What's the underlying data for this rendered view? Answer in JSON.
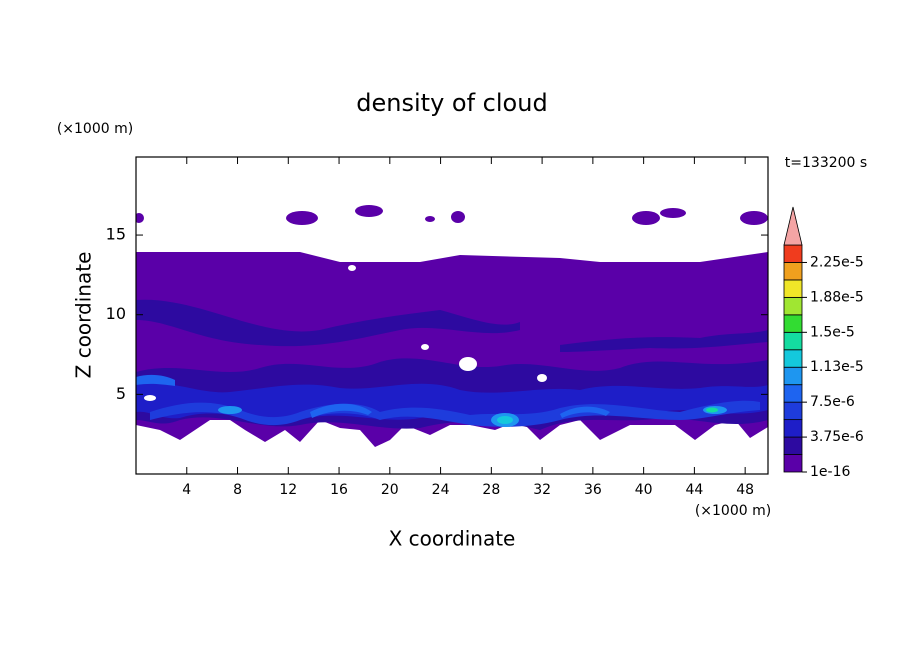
{
  "chart_data": {
    "type": "contour",
    "title": "density of cloud",
    "x_label": "X coordinate",
    "y_label": "Z coordinate",
    "x_unit": "(×1000 m)",
    "y_unit": "(×1000 m)",
    "annotation": "t=133200 s",
    "xlim": [
      0,
      49.8
    ],
    "ylim": [
      0,
      19.9
    ],
    "xticks": [
      4,
      8,
      12,
      16,
      20,
      24,
      28,
      32,
      36,
      40,
      44,
      48
    ],
    "yticks": [
      5,
      10,
      15
    ],
    "colorbar": {
      "levels": [
        1e-16,
        1.875e-06,
        3.75e-06,
        5.625e-06,
        7.5e-06,
        9.375e-06,
        1.125e-05,
        1.3125e-05,
        1.5e-05,
        1.6875e-05,
        1.875e-05,
        2.0625e-05,
        2.25e-05
      ],
      "colors": [
        "#5a00a8",
        "#2d0aa0",
        "#1e1ec8",
        "#1e3cdc",
        "#1e64f0",
        "#1e96f0",
        "#14c8dc",
        "#14dca0",
        "#32dc32",
        "#a0e632",
        "#f0e628",
        "#f0a01e",
        "#f03c1e"
      ],
      "extend_color": "#f4a4a4",
      "clim": [
        1e-16,
        2.4375e-05
      ],
      "ticks": [
        {
          "value": 1e-16,
          "label": "1e-16"
        },
        {
          "value": 3.75e-06,
          "label": "3.75e-6"
        },
        {
          "value": 7.5e-06,
          "label": "7.5e-6"
        },
        {
          "value": 1.125e-05,
          "label": "1.13e-5"
        },
        {
          "value": 1.5e-05,
          "label": "1.5e-5"
        },
        {
          "value": 1.875e-05,
          "label": "1.88e-5"
        },
        {
          "value": 2.25e-05,
          "label": "2.25e-5"
        }
      ]
    }
  }
}
